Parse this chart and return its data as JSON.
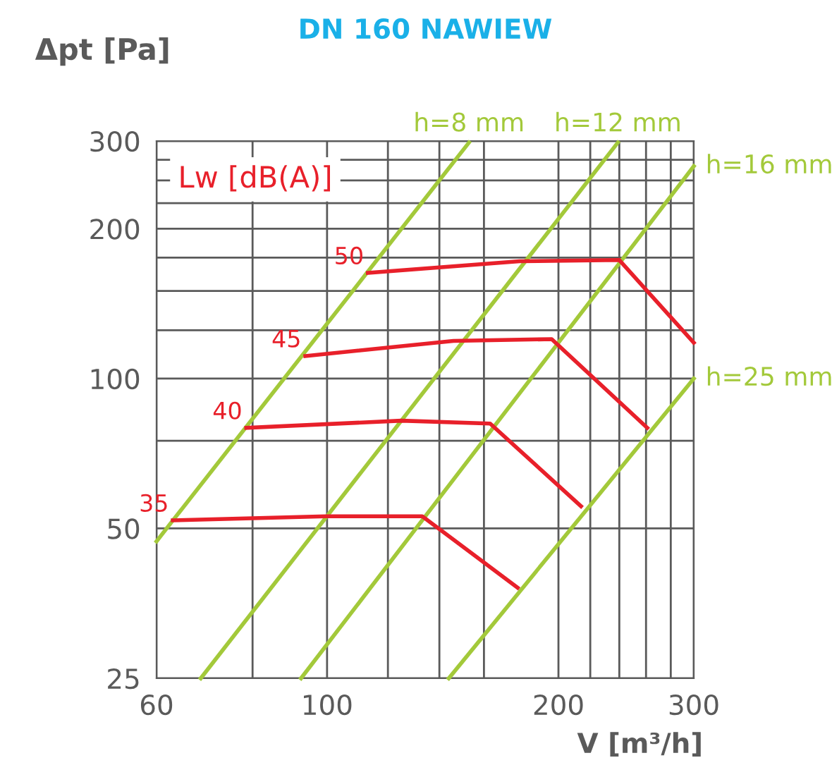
{
  "chart_data": {
    "type": "line",
    "title": "DN 160 NAWIEW",
    "xlabel": "V [m³/h]",
    "ylabel": "Δpt [Pa]",
    "log": "xy",
    "grid": true,
    "legend": false,
    "marker": "none",
    "line_style": "solid",
    "xlim": [
      60,
      300
    ],
    "ylim": [
      25,
      300
    ],
    "xticks": [
      60,
      {
        "value": 80,
        "label": null
      },
      100,
      {
        "value": 120,
        "label": null
      },
      {
        "value": 140,
        "label": null
      },
      {
        "value": 160,
        "label": null
      },
      200,
      {
        "value": 220,
        "label": null
      },
      {
        "value": 240,
        "label": null
      },
      {
        "value": 260,
        "label": null
      },
      {
        "value": 280,
        "label": null
      },
      300
    ],
    "yticks": [
      25,
      50,
      {
        "value": 75,
        "label": null
      },
      100,
      {
        "value": 125,
        "label": null
      },
      {
        "value": 150,
        "label": null
      },
      {
        "value": 175,
        "label": null
      },
      200,
      {
        "value": 225,
        "label": null
      },
      {
        "value": 250,
        "label": null
      },
      {
        "value": 275,
        "label": null
      },
      300
    ],
    "annotations": [
      "Lw [dB(A)]"
    ],
    "series": [
      {
        "name": "h=8 mm",
        "color": "#a3c93a",
        "x": [
          60,
          153
        ],
        "values": [
          47.1,
          298
        ]
      },
      {
        "name": "h=12 mm",
        "color": "#a3c93a",
        "x": [
          68.5,
          239
        ],
        "values": [
          25,
          298
        ]
      },
      {
        "name": "h=16 mm",
        "color": "#a3c93a",
        "x": [
          92.5,
          300
        ],
        "values": [
          25,
          267
        ]
      },
      {
        "name": "h=25 mm",
        "color": "#a3c93a",
        "x": [
          144,
          300
        ],
        "values": [
          25,
          100
        ]
      },
      {
        "name": "50",
        "color": "#e8202a",
        "x": [
          113,
          178,
          240,
          300
        ],
        "values": [
          163,
          172,
          173,
          118
        ]
      },
      {
        "name": "45",
        "color": "#e8202a",
        "x": [
          93.7,
          146,
          196,
          261
        ],
        "values": [
          111,
          119,
          120,
          79.6
        ]
      },
      {
        "name": "40",
        "color": "#e8202a",
        "x": [
          78.5,
          125,
          163,
          214
        ],
        "values": [
          79.6,
          82.3,
          81.2,
          55.4
        ]
      },
      {
        "name": "35",
        "color": "#e8202a",
        "x": [
          63,
          99.6,
          133,
          177
        ],
        "values": [
          51.9,
          52.9,
          52.9,
          38.0
        ]
      }
    ]
  }
}
